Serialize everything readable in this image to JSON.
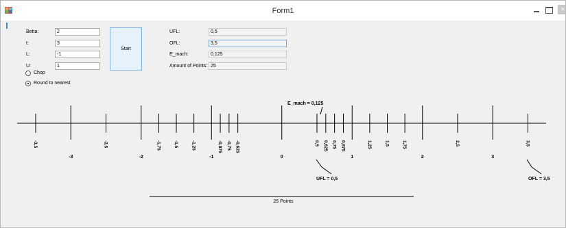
{
  "window": {
    "title": "Form1",
    "close_glyph": "×"
  },
  "inputs": {
    "betta": {
      "label": "Betta:",
      "value": "2"
    },
    "t": {
      "label": "t:",
      "value": "3"
    },
    "l": {
      "label": "L:",
      "value": "-1"
    },
    "u": {
      "label": "U:",
      "value": "1"
    }
  },
  "start_button": "Start",
  "radios": {
    "chop": "Chop",
    "round": "Round to nearest",
    "selected": "round"
  },
  "results": {
    "ufl": {
      "label": "UFL:",
      "value": "0,5"
    },
    "ofl": {
      "label": "OFL:",
      "value": "3,5"
    },
    "emach": {
      "label": "E_mach:",
      "value": "0,125"
    },
    "points": {
      "label": "Amount of Points:",
      "value": "25"
    }
  },
  "chart_data": {
    "type": "number-line",
    "range": [
      -3.5,
      3.5
    ],
    "integer_ticks": [
      -3,
      -2,
      -1,
      0,
      1,
      2,
      3
    ],
    "integer_labels": [
      "-3",
      "-2",
      "-1",
      "0",
      "1",
      "2",
      "3"
    ],
    "points": [
      -3.5,
      -2.5,
      -1.75,
      -1.5,
      -1.25,
      -0.875,
      -0.75,
      -0.625,
      0.5,
      0.625,
      0.75,
      0.875,
      1.25,
      1.5,
      1.75,
      2.5,
      3.5
    ],
    "point_labels": [
      "-3,5",
      "-2,5",
      "-1,75",
      "-1,5",
      "-1,25",
      "-0,875",
      "-0,75",
      "-0,625",
      "0,5",
      "0,625",
      "0,75",
      "0,875",
      "1,25",
      "1,5",
      "1,75",
      "2,5",
      "3,5"
    ],
    "annotations": {
      "emach": "E_mach = 0,125",
      "ufl": "UFL = 0,5",
      "ofl": "OFL = 3,5",
      "count": "25 Points"
    }
  }
}
